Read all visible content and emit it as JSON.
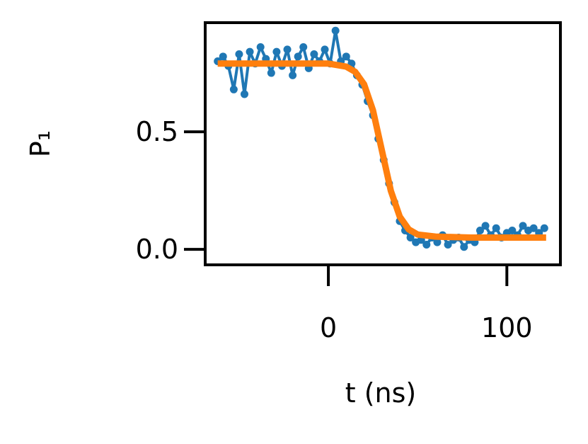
{
  "chart_data": {
    "type": "line",
    "xlabel": "t (ns)",
    "ylabel": "P₁",
    "xlim": [
      -69,
      130
    ],
    "ylim": [
      -0.066,
      0.964
    ],
    "xticks": [
      0,
      100
    ],
    "yticks": [
      {
        "value": 0,
        "label": "0.0"
      },
      {
        "value": 0.5,
        "label": "0.5"
      }
    ],
    "series": [
      {
        "color": "#1f77b4",
        "markers": true,
        "x": [
          -62,
          -59,
          -56,
          -53,
          -50,
          -47,
          -44,
          -41,
          -38,
          -35,
          -32,
          -29,
          -26,
          -23,
          -20,
          -17,
          -14,
          -11,
          -8,
          -5,
          -2,
          1,
          4,
          7,
          10,
          13,
          16,
          19,
          22,
          25,
          28,
          31,
          34,
          37,
          40,
          43,
          46,
          49,
          52,
          55,
          58,
          61,
          64,
          67,
          70,
          73,
          76,
          79,
          82,
          85,
          88,
          91,
          94,
          97,
          100,
          103,
          106,
          109,
          112,
          115,
          118,
          121
        ],
        "values": [
          0.8,
          0.82,
          0.78,
          0.68,
          0.83,
          0.66,
          0.84,
          0.79,
          0.86,
          0.81,
          0.75,
          0.84,
          0.78,
          0.85,
          0.74,
          0.82,
          0.86,
          0.77,
          0.83,
          0.8,
          0.85,
          0.79,
          0.93,
          0.8,
          0.82,
          0.79,
          0.74,
          0.7,
          0.63,
          0.57,
          0.47,
          0.38,
          0.28,
          0.2,
          0.12,
          0.08,
          0.05,
          0.03,
          0.04,
          0.02,
          0.05,
          0.03,
          0.06,
          0.02,
          0.04,
          0.05,
          0.01,
          0.04,
          0.03,
          0.08,
          0.1,
          0.06,
          0.09,
          0.05,
          0.07,
          0.08,
          0.06,
          0.1,
          0.08,
          0.09,
          0.07,
          0.09
        ]
      },
      {
        "color": "#ff7f0e",
        "markers": false,
        "x": [
          -62,
          -40,
          -20,
          0,
          10,
          15,
          20,
          25,
          30,
          35,
          40,
          45,
          50,
          60,
          80,
          100,
          122
        ],
        "values": [
          0.79,
          0.79,
          0.79,
          0.79,
          0.777,
          0.755,
          0.702,
          0.591,
          0.42,
          0.249,
          0.139,
          0.085,
          0.063,
          0.054,
          0.05,
          0.05,
          0.05
        ]
      }
    ]
  }
}
